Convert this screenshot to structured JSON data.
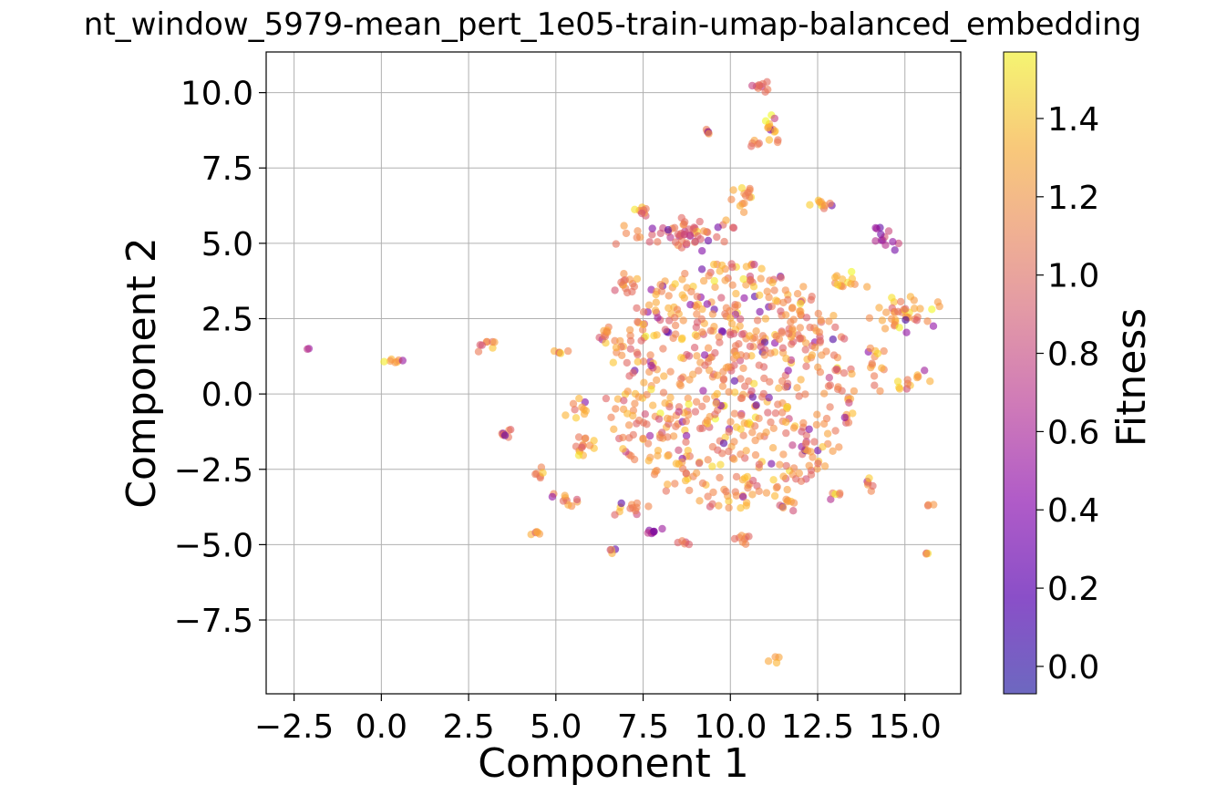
{
  "chart_data": {
    "type": "scatter",
    "title": "nt_window_5979-mean_pert_1e05-train-umap-balanced_embedding",
    "xlabel": "Component 1",
    "ylabel": "Component 2",
    "xlim": [
      -3.3,
      16.6
    ],
    "ylim": [
      -9.95,
      11.35
    ],
    "xticks": [
      -2.5,
      0.0,
      2.5,
      5.0,
      7.5,
      10.0,
      12.5,
      15.0
    ],
    "yticks": [
      -7.5,
      -5.0,
      -2.5,
      0.0,
      2.5,
      5.0,
      7.5,
      10.0
    ],
    "xtick_labels": [
      "−2.5",
      "0.0",
      "2.5",
      "5.0",
      "7.5",
      "10.0",
      "12.5",
      "15.0"
    ],
    "ytick_labels": [
      "−7.5",
      "−5.0",
      "−2.5",
      "0.0",
      "2.5",
      "5.0",
      "7.5",
      "10.0"
    ],
    "grid": true,
    "colormap": "plasma",
    "point_alpha": 0.6,
    "colorbar": {
      "label": "Fitness",
      "range": [
        -0.07,
        1.57
      ],
      "ticks": [
        0.0,
        0.2,
        0.4,
        0.6,
        0.8,
        1.0,
        1.2,
        1.4
      ],
      "tick_labels": [
        "0.0",
        "0.2",
        "0.4",
        "0.6",
        "0.8",
        "1.0",
        "1.2",
        "1.4"
      ]
    },
    "clusters": [
      {
        "cx": 10.0,
        "cy": 0.3,
        "rx": 3.6,
        "ry": 4.1,
        "n": 650,
        "fitness": 1.1
      },
      {
        "cx": 8.6,
        "cy": 5.3,
        "rx": 1.6,
        "ry": 0.5,
        "n": 60,
        "fitness": 0.9
      },
      {
        "cx": 14.9,
        "cy": 2.6,
        "rx": 1.0,
        "ry": 0.6,
        "n": 40,
        "fitness": 1.15
      },
      {
        "cx": 13.3,
        "cy": 3.7,
        "rx": 0.5,
        "ry": 0.3,
        "n": 14,
        "fitness": 1.2
      },
      {
        "cx": 14.2,
        "cy": 1.1,
        "rx": 0.4,
        "ry": 0.7,
        "n": 14,
        "fitness": 1.1
      },
      {
        "cx": 15.2,
        "cy": 0.5,
        "rx": 0.5,
        "ry": 0.3,
        "n": 12,
        "fitness": 1.2
      },
      {
        "cx": 11.2,
        "cy": 9.0,
        "rx": 0.3,
        "ry": 0.5,
        "n": 14,
        "fitness": 1.2
      },
      {
        "cx": 10.9,
        "cy": 10.2,
        "rx": 0.4,
        "ry": 0.2,
        "n": 10,
        "fitness": 0.9
      },
      {
        "cx": 10.4,
        "cy": 6.6,
        "rx": 0.3,
        "ry": 0.5,
        "n": 14,
        "fitness": 1.1
      },
      {
        "cx": 12.6,
        "cy": 6.3,
        "rx": 0.3,
        "ry": 0.2,
        "n": 10,
        "fitness": 1.25
      },
      {
        "cx": 14.5,
        "cy": 5.1,
        "rx": 0.4,
        "ry": 0.4,
        "n": 10,
        "fitness": 0.6
      },
      {
        "cx": 7.5,
        "cy": 6.1,
        "rx": 0.2,
        "ry": 0.2,
        "n": 8,
        "fitness": 1.2
      },
      {
        "cx": 9.4,
        "cy": 8.7,
        "rx": 0.15,
        "ry": 0.1,
        "n": 5,
        "fitness": 1.1
      },
      {
        "cx": 10.8,
        "cy": 8.3,
        "rx": 0.2,
        "ry": 0.1,
        "n": 5,
        "fitness": 1.2
      },
      {
        "cx": 7.0,
        "cy": 3.6,
        "rx": 0.5,
        "ry": 0.3,
        "n": 14,
        "fitness": 1.1
      },
      {
        "cx": 6.5,
        "cy": 2.0,
        "rx": 0.4,
        "ry": 0.3,
        "n": 10,
        "fitness": 1.1
      },
      {
        "cx": 5.7,
        "cy": -0.5,
        "rx": 0.5,
        "ry": 0.3,
        "n": 10,
        "fitness": 1.1
      },
      {
        "cx": 5.1,
        "cy": 1.4,
        "rx": 0.2,
        "ry": 0.1,
        "n": 5,
        "fitness": 1.1
      },
      {
        "cx": 5.8,
        "cy": -1.7,
        "rx": 0.4,
        "ry": 0.4,
        "n": 14,
        "fitness": 1.1
      },
      {
        "cx": 3.6,
        "cy": -1.3,
        "rx": 0.25,
        "ry": 0.3,
        "n": 8,
        "fitness": 1.0
      },
      {
        "cx": 3.0,
        "cy": 1.7,
        "rx": 0.25,
        "ry": 0.2,
        "n": 8,
        "fitness": 1.1
      },
      {
        "cx": 0.3,
        "cy": 1.1,
        "rx": 0.2,
        "ry": 0.15,
        "n": 7,
        "fitness": 1.2
      },
      {
        "cx": -2.1,
        "cy": 1.5,
        "rx": 0.03,
        "ry": 0.03,
        "n": 2,
        "fitness": 0.6
      },
      {
        "cx": 4.5,
        "cy": -2.6,
        "rx": 0.2,
        "ry": 0.2,
        "n": 6,
        "fitness": 1.0
      },
      {
        "cx": 5.3,
        "cy": -3.5,
        "rx": 0.6,
        "ry": 0.2,
        "n": 10,
        "fitness": 1.0
      },
      {
        "cx": 4.5,
        "cy": -4.6,
        "rx": 0.15,
        "ry": 0.1,
        "n": 5,
        "fitness": 1.1
      },
      {
        "cx": 6.6,
        "cy": -5.2,
        "rx": 0.1,
        "ry": 0.1,
        "n": 4,
        "fitness": 1.1
      },
      {
        "cx": 7.2,
        "cy": -3.8,
        "rx": 0.6,
        "ry": 0.2,
        "n": 12,
        "fitness": 1.0
      },
      {
        "cx": 7.8,
        "cy": -4.5,
        "rx": 0.3,
        "ry": 0.2,
        "n": 8,
        "fitness": 0.5
      },
      {
        "cx": 8.6,
        "cy": -5.0,
        "rx": 0.2,
        "ry": 0.1,
        "n": 5,
        "fitness": 1.1
      },
      {
        "cx": 10.3,
        "cy": -4.9,
        "rx": 0.3,
        "ry": 0.3,
        "n": 8,
        "fitness": 1.1
      },
      {
        "cx": 11.6,
        "cy": -3.6,
        "rx": 0.4,
        "ry": 0.3,
        "n": 10,
        "fitness": 1.1
      },
      {
        "cx": 13.0,
        "cy": -3.3,
        "rx": 0.2,
        "ry": 0.1,
        "n": 5,
        "fitness": 1.1
      },
      {
        "cx": 14.0,
        "cy": -3.0,
        "rx": 0.15,
        "ry": 0.3,
        "n": 6,
        "fitness": 1.2
      },
      {
        "cx": 15.7,
        "cy": -3.7,
        "rx": 0.1,
        "ry": 0.05,
        "n": 3,
        "fitness": 1.1
      },
      {
        "cx": 15.6,
        "cy": -5.3,
        "rx": 0.1,
        "ry": 0.05,
        "n": 3,
        "fitness": 1.1
      },
      {
        "cx": 11.3,
        "cy": -8.8,
        "rx": 0.1,
        "ry": 0.15,
        "n": 4,
        "fitness": 1.2
      },
      {
        "cx": 14.2,
        "cy": 5.5,
        "rx": 0.1,
        "ry": 0.05,
        "n": 3,
        "fitness": 0.3
      }
    ]
  }
}
